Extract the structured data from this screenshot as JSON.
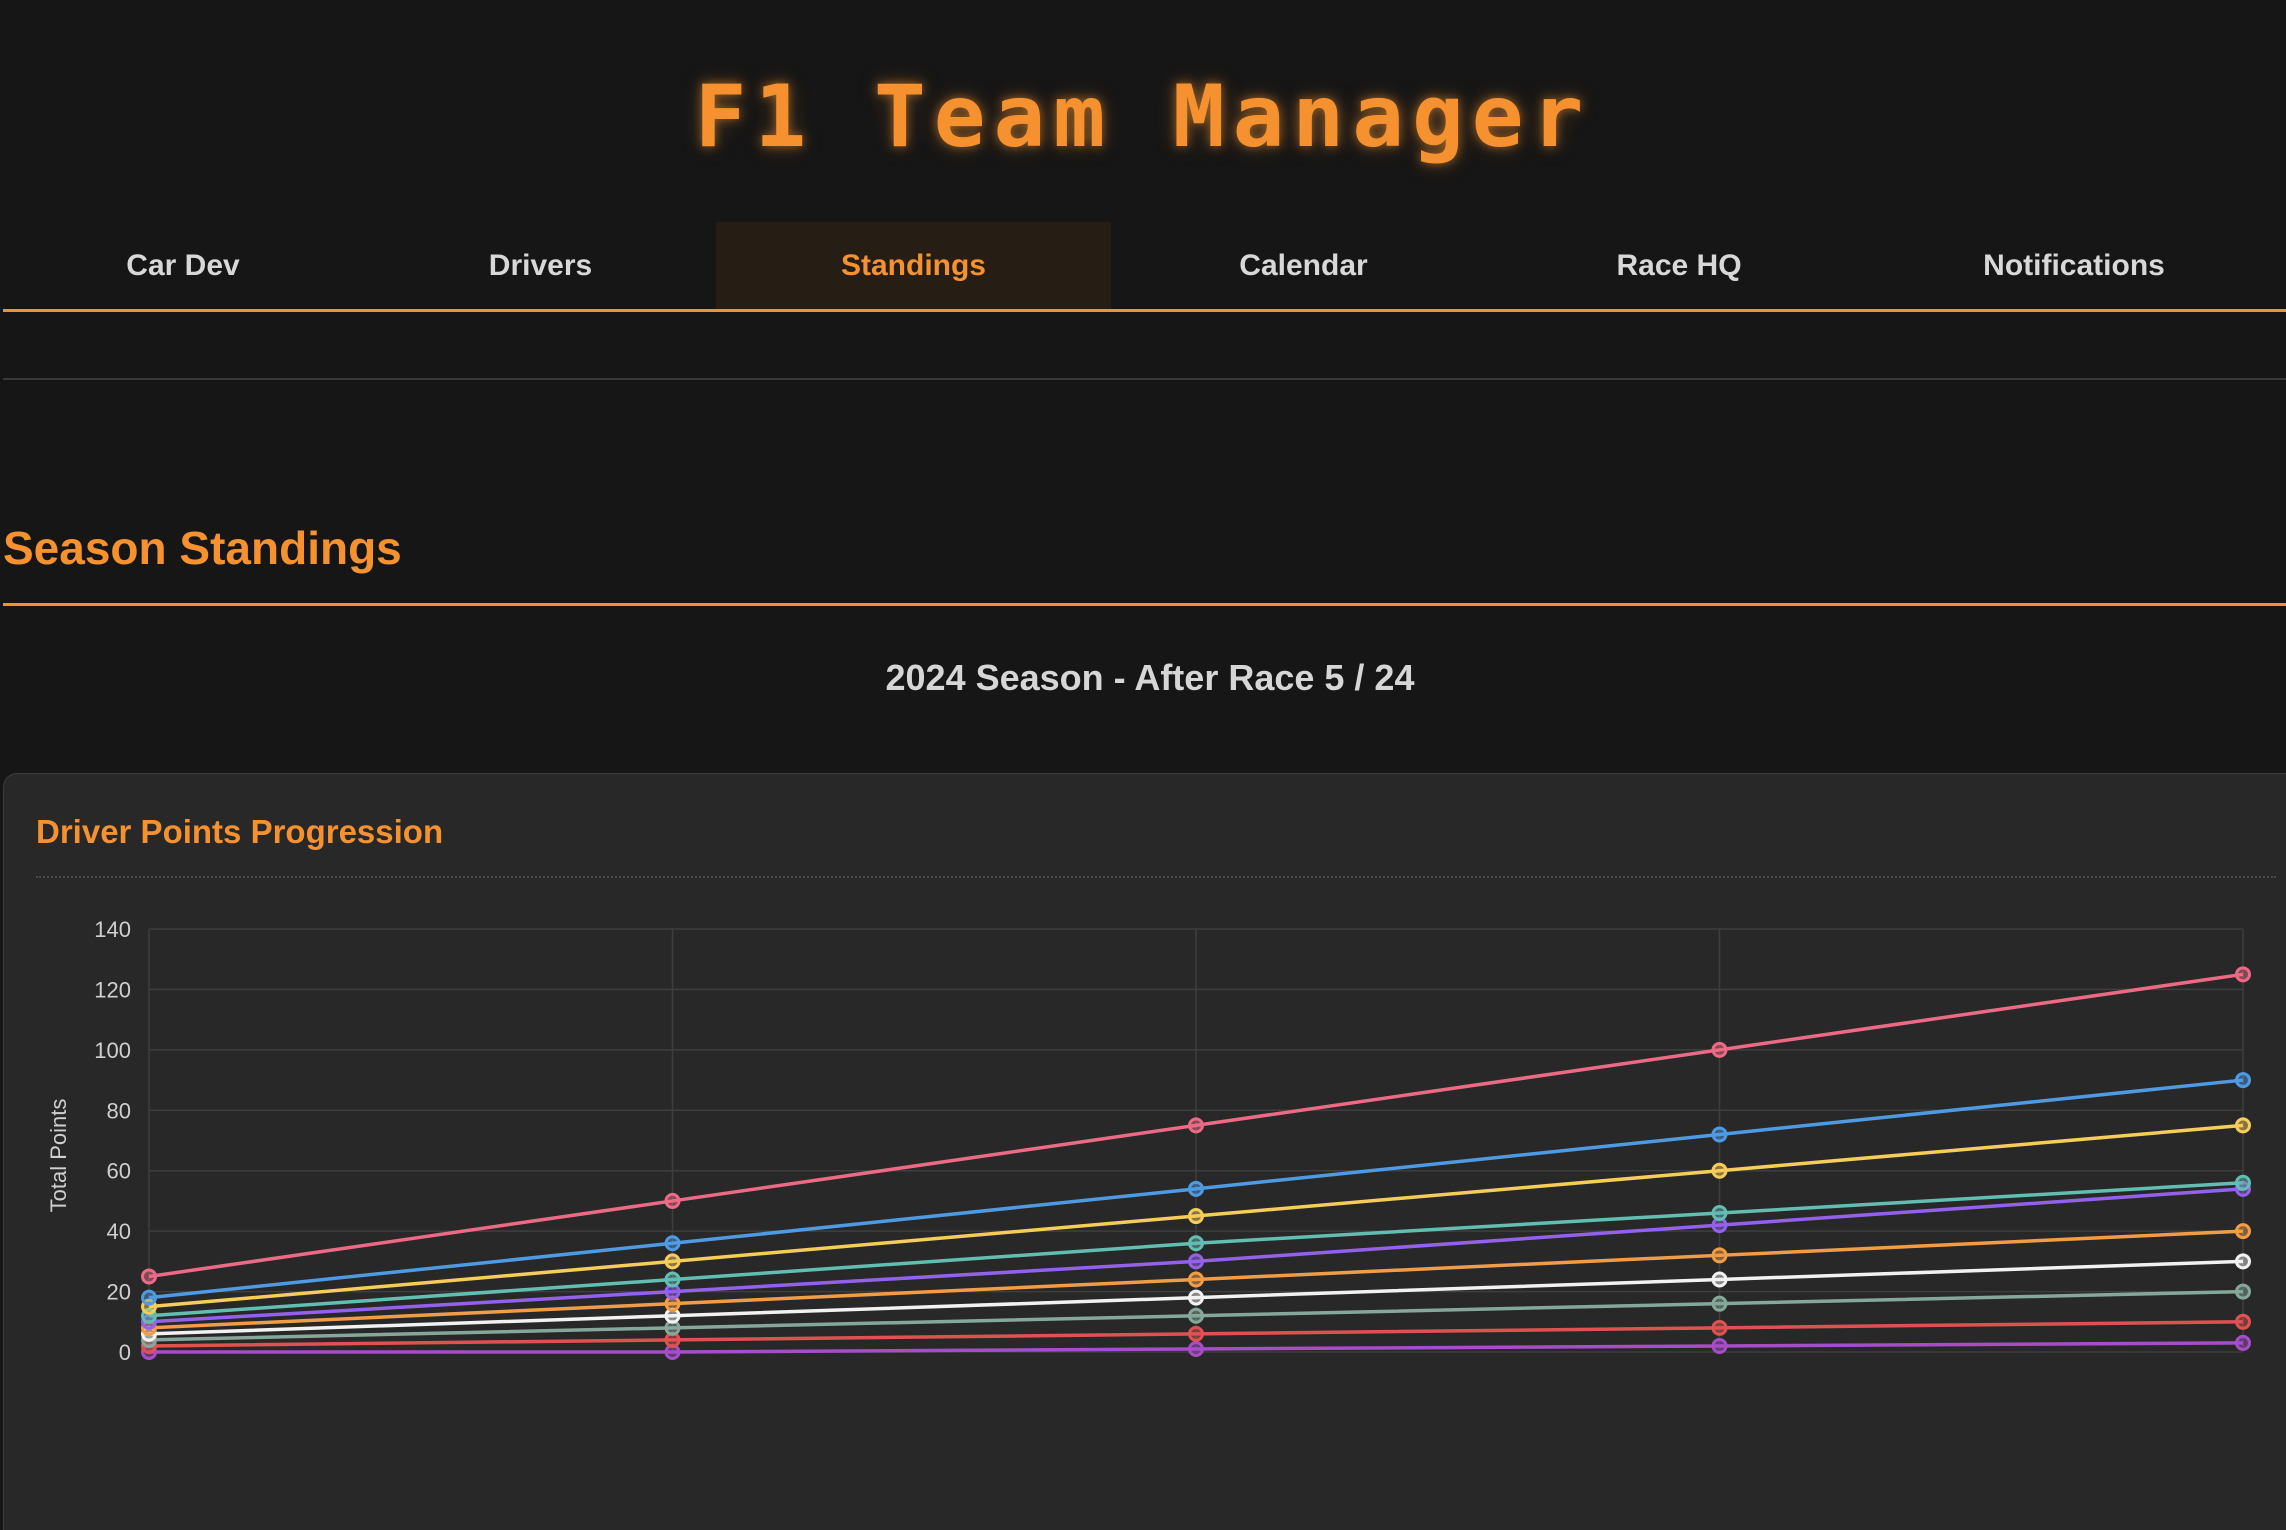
{
  "app": {
    "title": "F1 Team Manager"
  },
  "nav": {
    "tabs": [
      {
        "label": "Car Dev",
        "active": false
      },
      {
        "label": "Drivers",
        "active": false
      },
      {
        "label": "Standings",
        "active": true
      },
      {
        "label": "Calendar",
        "active": false
      },
      {
        "label": "Race HQ",
        "active": false
      },
      {
        "label": "Notifications",
        "active": false
      }
    ]
  },
  "standings": {
    "section_title": "Season Standings",
    "season_label": "2024 Season - After Race 5 / 24",
    "chart_title": "Driver Points Progression"
  },
  "colors": {
    "accent": "#f5922f",
    "background": "#161616",
    "card": "#282828"
  },
  "chart_data": {
    "type": "line",
    "title": "Driver Points Progression",
    "ylabel": "Total Points",
    "xlabel": "",
    "x": [
      1,
      2,
      3,
      4,
      5
    ],
    "ylim": [
      0,
      140
    ],
    "yticks": [
      0,
      20,
      40,
      60,
      80,
      100,
      120,
      140
    ],
    "grid": true,
    "legend": "none",
    "series": [
      {
        "color": "#ec6a86",
        "values": [
          25,
          50,
          75,
          100,
          125
        ]
      },
      {
        "color": "#4f9be3",
        "values": [
          18,
          36,
          54,
          72,
          90
        ]
      },
      {
        "color": "#f7cd5a",
        "values": [
          15,
          30,
          45,
          60,
          75
        ]
      },
      {
        "color": "#62bdb3",
        "values": [
          12,
          24,
          36,
          46,
          56
        ]
      },
      {
        "color": "#9461ed",
        "values": [
          10,
          20,
          30,
          42,
          54
        ]
      },
      {
        "color": "#f29d45",
        "values": [
          8,
          16,
          24,
          32,
          40
        ]
      },
      {
        "color": "#f2f2f2",
        "values": [
          6,
          12,
          18,
          24,
          30
        ]
      },
      {
        "color": "#85a89b",
        "values": [
          4,
          8,
          12,
          16,
          20
        ]
      },
      {
        "color": "#e05252",
        "values": [
          2,
          4,
          6,
          8,
          10
        ]
      },
      {
        "color": "#a64ec9",
        "values": [
          0,
          0,
          1,
          2,
          3
        ]
      }
    ]
  }
}
